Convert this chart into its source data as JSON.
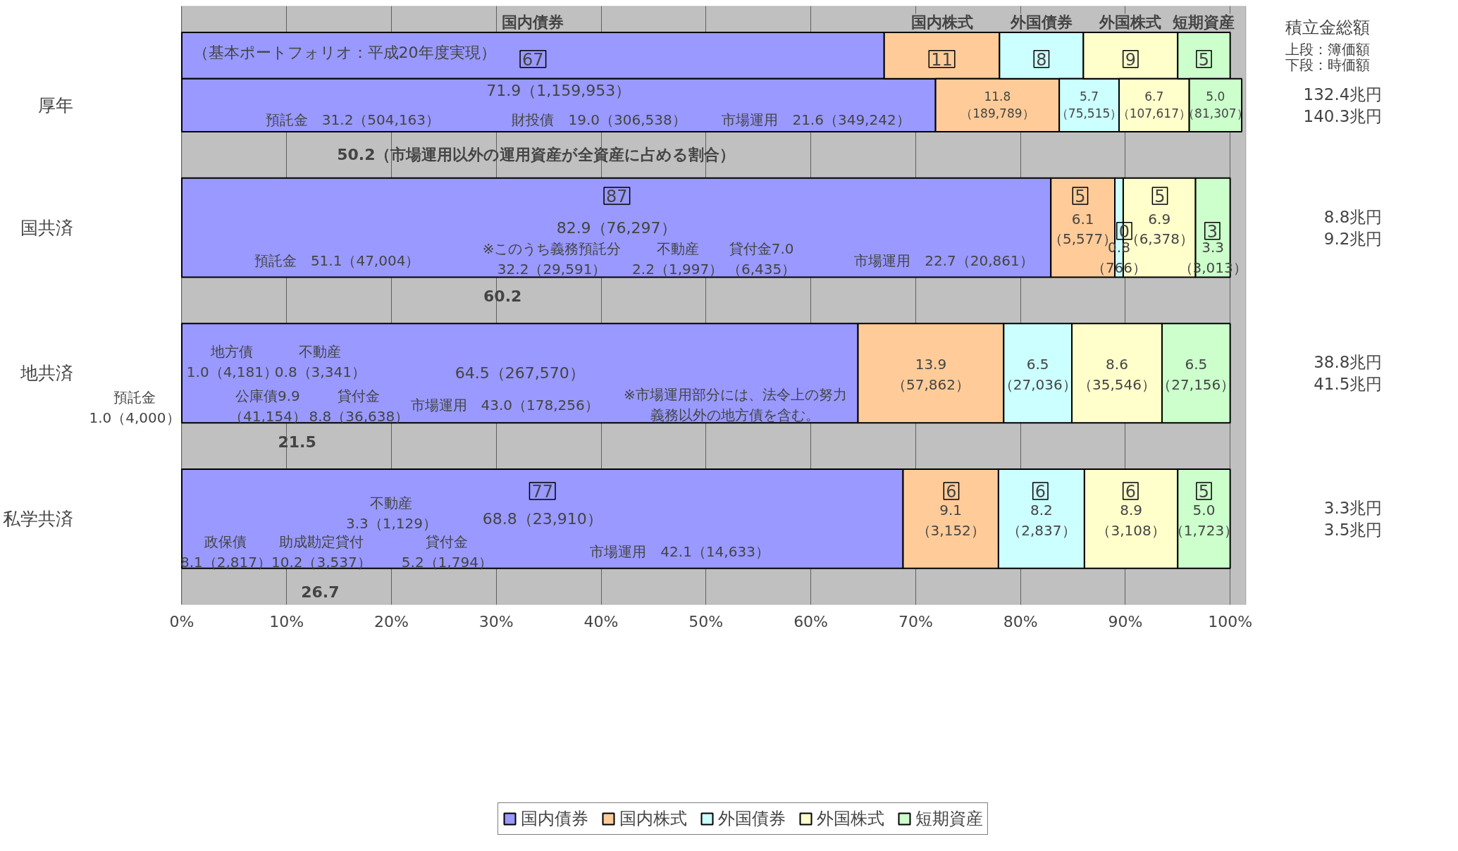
{
  "chart_data": {
    "type": "bar",
    "orientation": "horizontal",
    "stacked": true,
    "categories": [
      null,
      "厚年",
      "国共済",
      "地共済",
      "私学共済"
    ],
    "series": [
      {
        "name": "国内債券",
        "color": "#9999ff",
        "values": [
          67,
          71.9,
          82.9,
          64.5,
          68.8
        ],
        "value_labels": [
          "67",
          "71.9（1,159,953）",
          "82.9（76,297）",
          "64.5（267,570）",
          "68.8（23,910）"
        ]
      },
      {
        "name": "国内株式",
        "color": "#ffcc99",
        "values": [
          11,
          11.8,
          6.1,
          13.9,
          9.1
        ],
        "value_labels": [
          "11",
          "11.8（189,789）",
          "6.1（5,577）",
          "13.9（57,862）",
          "9.1（3,152）"
        ]
      },
      {
        "name": "外国債券",
        "color": "#ccffff",
        "values": [
          8,
          5.7,
          0.8,
          6.5,
          8.2
        ],
        "value_labels": [
          "8",
          "5.7（75,515）",
          "0.8（766）",
          "6.5（27,036）",
          "8.2（2,837）"
        ]
      },
      {
        "name": "外国株式",
        "color": "#ffffcc",
        "values": [
          9,
          6.7,
          6.9,
          8.6,
          8.9
        ],
        "value_labels": [
          "9",
          "6.7（107,617）",
          "6.9（6,378）",
          "8.6（35,546）",
          "8.9（3,108）"
        ]
      },
      {
        "name": "短期資産",
        "color": "#ccffcc",
        "values": [
          5,
          5.0,
          3.3,
          6.5,
          5.0
        ],
        "value_labels": [
          "5",
          "5.0（81,307）",
          "3.3（3,013）",
          "6.5（27,156）",
          "5.0（1,723）"
        ]
      }
    ],
    "xlim": [
      0,
      101.5
    ],
    "xticks": [
      {
        "value": 0,
        "label": "0%"
      },
      {
        "value": 10,
        "label": "10%"
      },
      {
        "value": 20,
        "label": "20%"
      },
      {
        "value": 30,
        "label": "30%"
      },
      {
        "value": 40,
        "label": "40%"
      },
      {
        "value": 50,
        "label": "50%"
      },
      {
        "value": 60,
        "label": "60%"
      },
      {
        "value": 70,
        "label": "70%"
      },
      {
        "value": 80,
        "label": "80%"
      },
      {
        "value": 90,
        "label": "90%"
      },
      {
        "value": 100,
        "label": "100%"
      }
    ],
    "grid": "x",
    "legend": "bottom",
    "annotations": [
      "（基本ポートフォリオ：平成20年度実現）",
      "預託金　31.2（504,163）",
      "財投債　19.0（306,538）",
      "市場運用　21.6（349,242）",
      "50.2（市場運用以外の運用資産が全資産に占める割合）",
      "預託金　51.1（47,004）",
      "※このうち義務預託分\n32.2（29,591）",
      "不動産\n2.2（1,997）",
      "貸付金7.0\n（6,435）",
      "市場運用　22.7（20,861）",
      "60.2",
      "地方債\n1.0（4,181）",
      "不動産\n0.8（3,341）",
      "預託金\n1.0（4,000）",
      "公庫債9.9\n（41,154）",
      "貸付金\n8.8（36,638）",
      "市場運用　43.0（178,256）",
      "※市場運用部分には、法令上の努力義務以外の地方債を含む。",
      "21.5",
      "不動産\n3.3（1,129）",
      "政保債\n8.1（2,817）",
      "助成勘定貸付\n10.2（3,537）",
      "貸付金\n5.2（1,794）",
      "市場運用　42.1（14,633）",
      "26.7",
      "積立金総額",
      "上段：簿価額",
      "下段：時価額",
      "87",
      "5",
      "0",
      "5",
      "3",
      "77",
      "6",
      "6",
      "6",
      "5",
      "132.4兆円\n140.3兆円",
      "8.8兆円\n9.2兆円",
      "38.8兆円\n41.5兆円",
      "3.3兆円\n3.5兆円"
    ]
  }
}
